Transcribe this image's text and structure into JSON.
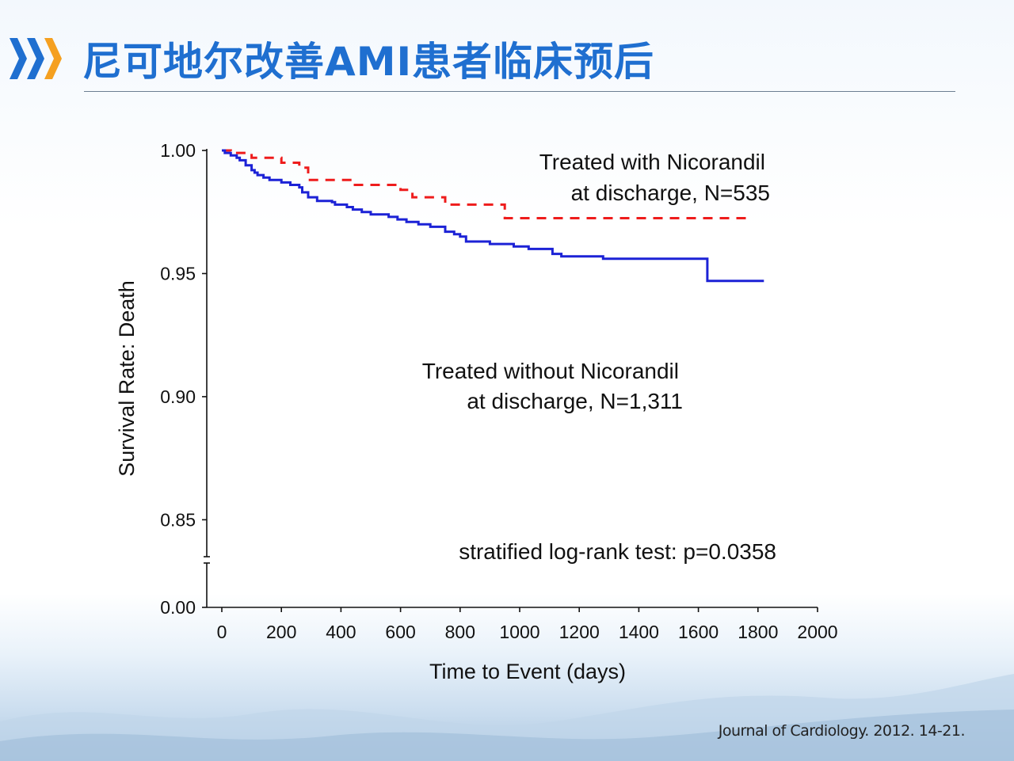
{
  "slide": {
    "title": "尼可地尔改善AMI患者临床预后",
    "citation": "Journal of Cardiology. 2012. 14-21."
  },
  "colors": {
    "title": "#1f6fd0",
    "chevron_blue": "#1f6fd0",
    "chevron_orange": "#f5a020",
    "with_series": "#ee1c1c",
    "without_series": "#1c22d6"
  },
  "chart_data": {
    "type": "line",
    "subtype": "kaplan-meier step",
    "xlabel": "Time to Event (days)",
    "ylabel": "Survival Rate: Death",
    "xlim": [
      0,
      2000
    ],
    "x_ticks": [
      "0",
      "200",
      "400",
      "600",
      "800",
      "1000",
      "1200",
      "1400",
      "1600",
      "1800",
      "2000"
    ],
    "y_ticks": [
      "1.00",
      "0.95",
      "0.90",
      "0.85",
      "0.00"
    ],
    "y_upper_range": [
      0.835,
      1.0
    ],
    "y_axis_break": true,
    "grid": false,
    "series": [
      {
        "name": "Treated with Nicorandil at discharge, N=535",
        "label_lines": [
          "Treated with Nicorandil",
          "at discharge, N=535"
        ],
        "line_style": "dashed",
        "color": "#ee1c1c",
        "steps": [
          [
            0,
            1.0
          ],
          [
            30,
            0.999
          ],
          [
            100,
            0.997
          ],
          [
            200,
            0.995
          ],
          [
            260,
            0.993
          ],
          [
            290,
            0.988
          ],
          [
            440,
            0.986
          ],
          [
            600,
            0.984
          ],
          [
            640,
            0.981
          ],
          [
            750,
            0.978
          ],
          [
            950,
            0.9725
          ],
          [
            1780,
            0.9725
          ]
        ]
      },
      {
        "name": "Treated without Nicorandil at discharge, N=1,311",
        "label_lines": [
          "Treated without Nicorandil",
          "at discharge, N=1,311"
        ],
        "line_style": "solid",
        "color": "#1c22d6",
        "steps": [
          [
            0,
            1.0
          ],
          [
            10,
            0.999
          ],
          [
            30,
            0.998
          ],
          [
            50,
            0.997
          ],
          [
            60,
            0.996
          ],
          [
            80,
            0.994
          ],
          [
            100,
            0.992
          ],
          [
            110,
            0.991
          ],
          [
            120,
            0.99
          ],
          [
            140,
            0.989
          ],
          [
            160,
            0.988
          ],
          [
            200,
            0.987
          ],
          [
            230,
            0.986
          ],
          [
            260,
            0.985
          ],
          [
            270,
            0.983
          ],
          [
            290,
            0.981
          ],
          [
            320,
            0.9795
          ],
          [
            370,
            0.979
          ],
          [
            380,
            0.978
          ],
          [
            420,
            0.977
          ],
          [
            440,
            0.976
          ],
          [
            470,
            0.975
          ],
          [
            500,
            0.974
          ],
          [
            560,
            0.973
          ],
          [
            590,
            0.972
          ],
          [
            620,
            0.971
          ],
          [
            660,
            0.97
          ],
          [
            700,
            0.969
          ],
          [
            750,
            0.967
          ],
          [
            780,
            0.966
          ],
          [
            800,
            0.965
          ],
          [
            820,
            0.963
          ],
          [
            900,
            0.962
          ],
          [
            980,
            0.961
          ],
          [
            1030,
            0.96
          ],
          [
            1110,
            0.958
          ],
          [
            1140,
            0.957
          ],
          [
            1280,
            0.956
          ],
          [
            1630,
            0.947
          ],
          [
            1820,
            0.947
          ]
        ]
      }
    ],
    "annotation": "stratified log-rank test: p=0.0358"
  }
}
